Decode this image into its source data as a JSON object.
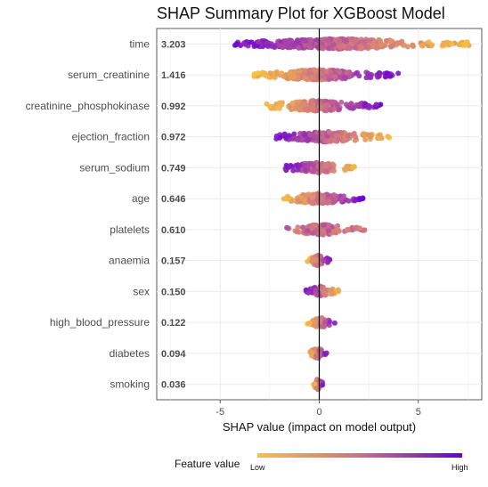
{
  "chart_data": {
    "type": "scatter",
    "title": "SHAP Summary Plot for XGBoost Model",
    "xlabel": "SHAP value (impact on model output)",
    "ylabel": "",
    "xlim": [
      -8.2,
      8.2
    ],
    "xticks": [
      -5,
      0,
      5
    ],
    "grid": true,
    "zero_line": true,
    "legend": {
      "title": "Feature value",
      "low_label": "Low",
      "high_label": "High",
      "placement": "bottom",
      "colors": {
        "low": "#f7c23c",
        "mid": "#cc6f88",
        "high": "#6a00d4"
      }
    },
    "features": [
      {
        "name": "time",
        "importance": "3.203",
        "min": -4.5,
        "max": 7.6,
        "direction": -1
      },
      {
        "name": "serum_creatinine",
        "importance": "1.416",
        "min": -3.3,
        "max": 4.0,
        "direction": 1
      },
      {
        "name": "creatinine_phosphokinase",
        "importance": "0.992",
        "min": -2.7,
        "max": 3.1,
        "direction": 1
      },
      {
        "name": "ejection_fraction",
        "importance": "0.972",
        "min": -2.2,
        "max": 3.6,
        "direction": -1
      },
      {
        "name": "serum_sodium",
        "importance": "0.749",
        "min": -1.9,
        "max": 2.1,
        "direction": -1
      },
      {
        "name": "age",
        "importance": "0.646",
        "min": -1.8,
        "max": 2.2,
        "direction": 1
      },
      {
        "name": "platelets",
        "importance": "0.610",
        "min": -1.7,
        "max": 2.3,
        "direction": 0
      },
      {
        "name": "anaemia",
        "importance": "0.157",
        "min": -0.6,
        "max": 0.6,
        "direction": 1
      },
      {
        "name": "sex",
        "importance": "0.150",
        "min": -0.7,
        "max": 1.0,
        "direction": -1
      },
      {
        "name": "high_blood_pressure",
        "importance": "0.122",
        "min": -0.6,
        "max": 0.8,
        "direction": 1
      },
      {
        "name": "diabetes",
        "importance": "0.094",
        "min": -0.5,
        "max": 0.4,
        "direction": 1
      },
      {
        "name": "smoking",
        "importance": "0.036",
        "min": -0.3,
        "max": 0.2,
        "direction": 1
      }
    ]
  }
}
